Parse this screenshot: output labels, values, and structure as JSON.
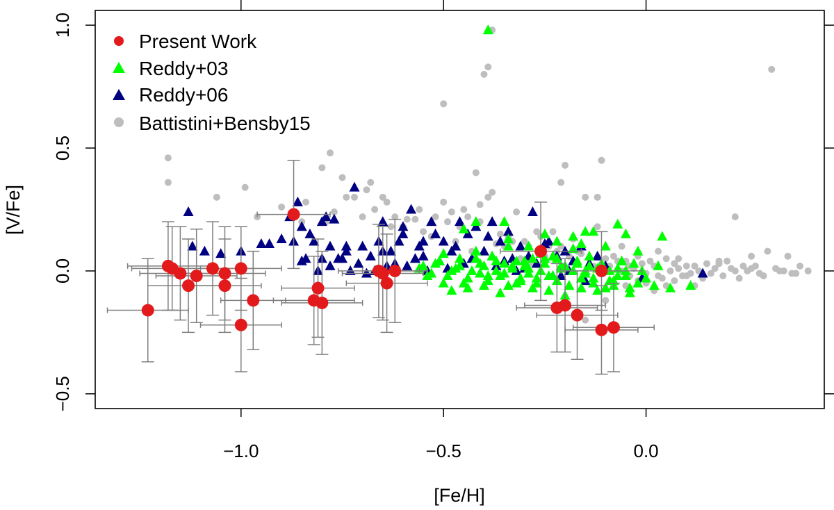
{
  "chart_data": {
    "type": "scatter",
    "xlabel": "[Fe/H]",
    "ylabel": "[V/Fe]",
    "xlim": [
      -1.36,
      0.44
    ],
    "ylim": [
      -0.56,
      1.06
    ],
    "xticks": [
      -1.0,
      -0.5,
      0.0
    ],
    "xtick_labels": [
      "−1.0",
      "−0.5",
      "0.0"
    ],
    "yticks": [
      -0.5,
      0.0,
      0.5,
      1.0
    ],
    "ytick_labels": [
      "−0.5",
      "0.0",
      "0.5",
      "1.0"
    ],
    "top_ticks": [
      -1.0,
      -0.5,
      0.0
    ],
    "right_ticks": [
      -0.5,
      0.0,
      0.5,
      1.0
    ],
    "legend": {
      "position": "top-left",
      "entries": [
        {
          "label": "Present Work",
          "marker": "circle",
          "color": "#e31a1c"
        },
        {
          "label": "Reddy+03",
          "marker": "triangle",
          "color": "#00ff00"
        },
        {
          "label": "Reddy+06",
          "marker": "triangle",
          "color": "#000080"
        },
        {
          "label": "Battistini+Bensby15",
          "marker": "circle",
          "color": "#bebebe"
        }
      ]
    },
    "series": [
      {
        "name": "Battistini+Bensby15",
        "marker": "circle",
        "color": "#bebebe",
        "x": [
          -1.18,
          -1.18,
          -1.06,
          -0.99,
          -0.96,
          -0.9,
          -0.85,
          -0.8,
          -0.78,
          -0.75,
          -0.72,
          -0.68,
          -0.64,
          -0.62,
          -0.6,
          -0.56,
          -0.5,
          -0.49,
          -0.42,
          -0.39,
          -0.38,
          -0.32,
          -0.26,
          -0.23,
          -0.2,
          -0.18,
          -0.15,
          -0.12,
          -0.11,
          -0.1,
          -0.08,
          -0.05,
          -0.04,
          -0.01,
          0.05,
          0.1,
          0.15,
          0.2,
          0.24,
          0.3,
          0.35,
          0.4,
          -0.4,
          -0.39,
          -0.38,
          -0.5,
          -0.11,
          0.31,
          -0.79,
          -0.69,
          -0.65,
          -0.48,
          -0.44,
          -0.41,
          -0.36,
          -0.33,
          -0.29,
          -0.27,
          -0.24,
          -0.22,
          -0.19,
          -0.16,
          -0.14,
          -0.09,
          -0.07,
          -0.06,
          -0.03,
          0.0,
          0.02,
          0.03,
          0.06,
          0.08,
          0.11,
          0.13,
          0.17,
          0.19,
          0.22,
          0.26,
          0.28,
          0.33,
          0.37,
          -0.53,
          -0.46,
          -0.35,
          -0.3,
          -0.25,
          -0.17,
          -0.13,
          -0.04,
          0.01,
          0.04,
          0.07,
          0.09,
          0.12,
          0.16,
          0.18,
          0.21,
          0.23,
          0.25,
          0.27,
          0.29,
          0.32,
          0.34,
          0.36,
          0.38,
          -0.57,
          -0.55,
          -0.52,
          -0.47,
          -0.43,
          -0.37,
          -0.34,
          -0.31,
          -0.28,
          -0.21,
          -0.02,
          0.0,
          0.05,
          0.1,
          0.14,
          -0.15,
          -0.1,
          -0.05,
          0.02,
          0.07,
          0.12,
          -0.84,
          -0.77,
          -0.74,
          -0.7,
          -0.67,
          -0.63,
          -0.59,
          -0.45,
          -0.21,
          -0.12,
          0.22,
          -0.41,
          -0.06,
          -0.02,
          0.03,
          0.08,
          0.18,
          0.26
        ],
        "y": [
          0.46,
          0.36,
          0.3,
          0.34,
          0.22,
          0.26,
          0.2,
          0.42,
          0.48,
          0.38,
          0.3,
          0.36,
          0.28,
          0.22,
          0.18,
          0.25,
          0.28,
          0.2,
          0.4,
          0.3,
          0.32,
          0.24,
          0.14,
          0.16,
          0.43,
          0.13,
          0.3,
          0.18,
          0.45,
          0.05,
          0.06,
          0.04,
          0.02,
          0.03,
          0.05,
          0.02,
          0.03,
          0.04,
          0.02,
          0.08,
          0.06,
          0.0,
          0.8,
          0.83,
          0.98,
          0.68,
          0.45,
          0.82,
          0.2,
          0.33,
          0.3,
          0.24,
          0.22,
          0.2,
          0.15,
          0.12,
          0.1,
          0.16,
          0.1,
          0.08,
          0.06,
          0.07,
          0.05,
          0.02,
          0.04,
          0.0,
          0.01,
          -0.01,
          0.02,
          -0.02,
          0.0,
          0.01,
          -0.01,
          0.0,
          0.01,
          -0.02,
          0.0,
          0.01,
          -0.01,
          0.0,
          -0.01,
          0.14,
          0.18,
          0.1,
          0.12,
          0.06,
          0.08,
          0.02,
          -0.02,
          0.04,
          -0.03,
          0.03,
          -0.02,
          0.02,
          -0.01,
          0.03,
          0.01,
          -0.03,
          0.0,
          0.02,
          -0.02,
          0.01,
          0.0,
          -0.01,
          0.02,
          0.21,
          0.16,
          0.22,
          0.12,
          0.08,
          0.11,
          0.14,
          0.05,
          0.03,
          0.1,
          -0.04,
          -0.05,
          -0.06,
          -0.02,
          -0.03,
          -0.2,
          -0.12,
          -0.06,
          -0.08,
          -0.04,
          -0.06,
          0.28,
          0.24,
          0.3,
          0.22,
          0.25,
          0.18,
          0.21,
          0.25,
          0.36,
          0.3,
          0.22,
          0.27,
          0.1,
          0.06,
          0.08,
          0.05,
          0.04,
          0.06
        ]
      },
      {
        "name": "Reddy+06",
        "marker": "triangle",
        "color": "#000080",
        "x": [
          -1.13,
          -1.12,
          -1.09,
          -1.05,
          -1.0,
          -0.95,
          -0.93,
          -0.9,
          -0.88,
          -0.86,
          -0.85,
          -0.83,
          -0.82,
          -0.8,
          -0.78,
          -0.76,
          -0.74,
          -0.72,
          -0.7,
          -0.68,
          -0.66,
          -0.65,
          -0.63,
          -0.61,
          -0.6,
          -0.58,
          -0.56,
          -0.55,
          -0.53,
          -0.52,
          -0.5,
          -0.48,
          -0.46,
          -0.44,
          -0.42,
          -0.4,
          -0.38,
          -0.36,
          -0.34,
          -0.33,
          -0.31,
          -0.29,
          -0.28,
          -0.26,
          -0.24,
          -0.22,
          -0.2,
          -0.18,
          -0.16,
          -0.14,
          -0.12,
          -0.1,
          -0.01,
          0.14,
          -0.84,
          -0.81,
          -0.78,
          -0.75,
          -0.71,
          -0.69,
          -0.64,
          -0.62,
          -0.57,
          -0.54,
          -0.49,
          -0.45,
          -0.41,
          -0.37,
          -0.35,
          -0.3,
          -0.27,
          -0.23,
          -0.19,
          -0.15,
          -0.11,
          -0.85,
          -0.8,
          -0.73,
          -0.67,
          -0.59,
          -0.51,
          -0.43,
          -0.32,
          -0.21,
          -0.87,
          -0.79,
          -0.77,
          -0.74,
          -0.65,
          -0.6,
          -0.55,
          -0.47,
          -0.39,
          -0.25
        ],
        "y": [
          0.24,
          0.1,
          0.08,
          0.07,
          0.08,
          0.11,
          0.11,
          0.13,
          0.22,
          0.28,
          0.18,
          0.15,
          0.12,
          0.2,
          0.1,
          0.05,
          0.08,
          0.34,
          0.1,
          0.06,
          0.12,
          0.2,
          0.08,
          0.12,
          0.18,
          0.25,
          0.1,
          0.06,
          0.2,
          0.15,
          0.12,
          0.08,
          0.2,
          0.15,
          0.18,
          0.08,
          0.2,
          0.12,
          0.16,
          0.05,
          0.1,
          0.06,
          0.24,
          0.08,
          0.12,
          0.06,
          0.08,
          0.04,
          0.1,
          0.03,
          0.06,
          0.02,
          -0.03,
          -0.01,
          0.05,
          0.0,
          0.02,
          0.05,
          0.03,
          -0.01,
          0.02,
          0.03,
          0.05,
          0.0,
          0.01,
          0.03,
          -0.01,
          0.02,
          0.04,
          0.01,
          0.03,
          -0.02,
          0.0,
          -0.04,
          0.02,
          0.04,
          0.05,
          0.0,
          0.0,
          0.02,
          0.04,
          0.05,
          0.0,
          -0.02,
          0.12,
          0.22,
          0.21,
          0.1,
          0.08,
          0.15,
          0.12,
          0.1,
          0.14,
          0.11
        ]
      },
      {
        "name": "Reddy+03",
        "marker": "triangle",
        "color": "#00ff00",
        "x": [
          -0.56,
          -0.54,
          -0.52,
          -0.5,
          -0.48,
          -0.46,
          -0.44,
          -0.42,
          -0.41,
          -0.4,
          -0.39,
          -0.38,
          -0.37,
          -0.36,
          -0.35,
          -0.34,
          -0.33,
          -0.32,
          -0.31,
          -0.3,
          -0.29,
          -0.28,
          -0.27,
          -0.26,
          -0.25,
          -0.24,
          -0.23,
          -0.22,
          -0.21,
          -0.2,
          -0.19,
          -0.18,
          -0.17,
          -0.16,
          -0.15,
          -0.14,
          -0.13,
          -0.12,
          -0.11,
          -0.1,
          -0.09,
          -0.08,
          -0.07,
          -0.06,
          -0.05,
          -0.04,
          -0.02,
          0.0,
          0.02,
          0.04,
          0.06,
          0.11,
          -0.55,
          -0.53,
          -0.51,
          -0.49,
          -0.47,
          -0.45,
          -0.43,
          -0.41,
          -0.39,
          -0.37,
          -0.35,
          -0.33,
          -0.31,
          -0.29,
          -0.27,
          -0.25,
          -0.23,
          -0.21,
          -0.19,
          -0.17,
          -0.15,
          -0.13,
          -0.11,
          -0.09,
          -0.07,
          -0.05,
          -0.03,
          -0.01,
          -0.5,
          -0.46,
          -0.42,
          -0.38,
          -0.34,
          -0.3,
          -0.26,
          -0.22,
          -0.18,
          -0.14,
          -0.1,
          -0.06,
          -0.02,
          0.03,
          -0.48,
          -0.44,
          -0.4,
          -0.36,
          -0.32,
          -0.28,
          -0.24,
          -0.2,
          -0.16,
          -0.12,
          -0.08,
          -0.04,
          -0.45,
          -0.35,
          -0.25,
          -0.15,
          -0.05,
          -0.39,
          -0.07,
          -0.42,
          -0.13,
          -0.34,
          -0.22,
          -0.29,
          -0.18,
          -0.16
        ],
        "y": [
          0.01,
          -0.02,
          0.03,
          -0.05,
          0.0,
          0.02,
          -0.03,
          0.05,
          -0.01,
          0.02,
          -0.04,
          0.06,
          0.0,
          -0.02,
          0.03,
          -0.06,
          0.01,
          0.04,
          -0.03,
          0.02,
          -0.01,
          0.05,
          -0.05,
          0.0,
          0.03,
          -0.02,
          0.06,
          -0.04,
          0.01,
          0.02,
          -0.06,
          0.0,
          0.04,
          -0.03,
          -0.01,
          0.02,
          -0.05,
          0.01,
          0.03,
          -0.07,
          0.0,
          -0.04,
          -0.02,
          0.04,
          0.0,
          -0.07,
          -0.05,
          -0.03,
          -0.06,
          0.14,
          -0.07,
          -0.06,
          0.02,
          -0.01,
          0.04,
          -0.02,
          0.01,
          -0.05,
          0.0,
          0.03,
          -0.02,
          0.04,
          -0.01,
          0.02,
          -0.04,
          0.01,
          -0.03,
          0.05,
          -0.02,
          0.02,
          -0.06,
          0.03,
          0.0,
          -0.03,
          0.02,
          -0.04,
          0.01,
          -0.02,
          0.03,
          0.0,
          0.07,
          0.05,
          0.08,
          0.06,
          0.1,
          0.04,
          0.07,
          0.05,
          0.09,
          0.06,
          0.1,
          0.04,
          0.08,
          0.02,
          -0.08,
          -0.07,
          -0.06,
          -0.09,
          -0.05,
          -0.07,
          -0.08,
          -0.1,
          -0.07,
          -0.08,
          -0.06,
          -0.09,
          0.17,
          0.2,
          0.15,
          0.16,
          0.15,
          0.98,
          0.19,
          0.2,
          0.16,
          0.13,
          0.12,
          0.1,
          0.14,
          0.11
        ]
      },
      {
        "name": "Present Work",
        "marker": "circle",
        "color": "#e31a1c",
        "error_color": "#7f7f7f",
        "points": [
          {
            "x": -1.23,
            "y": -0.16,
            "xerr": 0.1,
            "yerr": 0.21
          },
          {
            "x": -1.18,
            "y": 0.02,
            "xerr": 0.1,
            "yerr": 0.18
          },
          {
            "x": -1.17,
            "y": 0.01,
            "xerr": 0.1,
            "yerr": 0.17
          },
          {
            "x": -1.15,
            "y": -0.01,
            "xerr": 0.1,
            "yerr": 0.19
          },
          {
            "x": -1.13,
            "y": -0.06,
            "xerr": 0.1,
            "yerr": 0.19
          },
          {
            "x": -1.11,
            "y": -0.02,
            "xerr": 0.1,
            "yerr": 0.19
          },
          {
            "x": -1.07,
            "y": 0.01,
            "xerr": 0.1,
            "yerr": 0.19
          },
          {
            "x": -1.04,
            "y": -0.06,
            "xerr": 0.09,
            "yerr": 0.19
          },
          {
            "x": -1.04,
            "y": -0.01,
            "xerr": 0.1,
            "yerr": 0.19
          },
          {
            "x": -1.0,
            "y": 0.01,
            "xerr": 0.1,
            "yerr": 0.17
          },
          {
            "x": -1.0,
            "y": -0.22,
            "xerr": 0.1,
            "yerr": 0.19
          },
          {
            "x": -0.97,
            "y": -0.12,
            "xerr": 0.08,
            "yerr": 0.2
          },
          {
            "x": -0.87,
            "y": 0.23,
            "xerr": 0.09,
            "yerr": 0.22
          },
          {
            "x": -0.82,
            "y": -0.12,
            "xerr": 0.1,
            "yerr": 0.18
          },
          {
            "x": -0.81,
            "y": -0.07,
            "xerr": 0.09,
            "yerr": 0.2
          },
          {
            "x": -0.8,
            "y": -0.13,
            "xerr": 0.1,
            "yerr": 0.21
          },
          {
            "x": -0.66,
            "y": 0.0,
            "xerr": 0.1,
            "yerr": 0.19
          },
          {
            "x": -0.65,
            "y": -0.01,
            "xerr": 0.1,
            "yerr": 0.19
          },
          {
            "x": -0.64,
            "y": -0.05,
            "xerr": 0.1,
            "yerr": 0.2
          },
          {
            "x": -0.62,
            "y": 0.0,
            "xerr": 0.08,
            "yerr": 0.21
          },
          {
            "x": -0.26,
            "y": 0.08,
            "xerr": 0.1,
            "yerr": 0.2
          },
          {
            "x": -0.22,
            "y": -0.15,
            "xerr": 0.1,
            "yerr": 0.18
          },
          {
            "x": -0.2,
            "y": -0.14,
            "xerr": 0.1,
            "yerr": 0.19
          },
          {
            "x": -0.17,
            "y": -0.18,
            "xerr": 0.1,
            "yerr": 0.18
          },
          {
            "x": -0.11,
            "y": 0.0,
            "xerr": 0.1,
            "yerr": 0.16
          },
          {
            "x": -0.11,
            "y": -0.24,
            "xerr": 0.09,
            "yerr": 0.18
          },
          {
            "x": -0.08,
            "y": -0.23,
            "xerr": 0.1,
            "yerr": 0.18
          }
        ]
      }
    ]
  }
}
